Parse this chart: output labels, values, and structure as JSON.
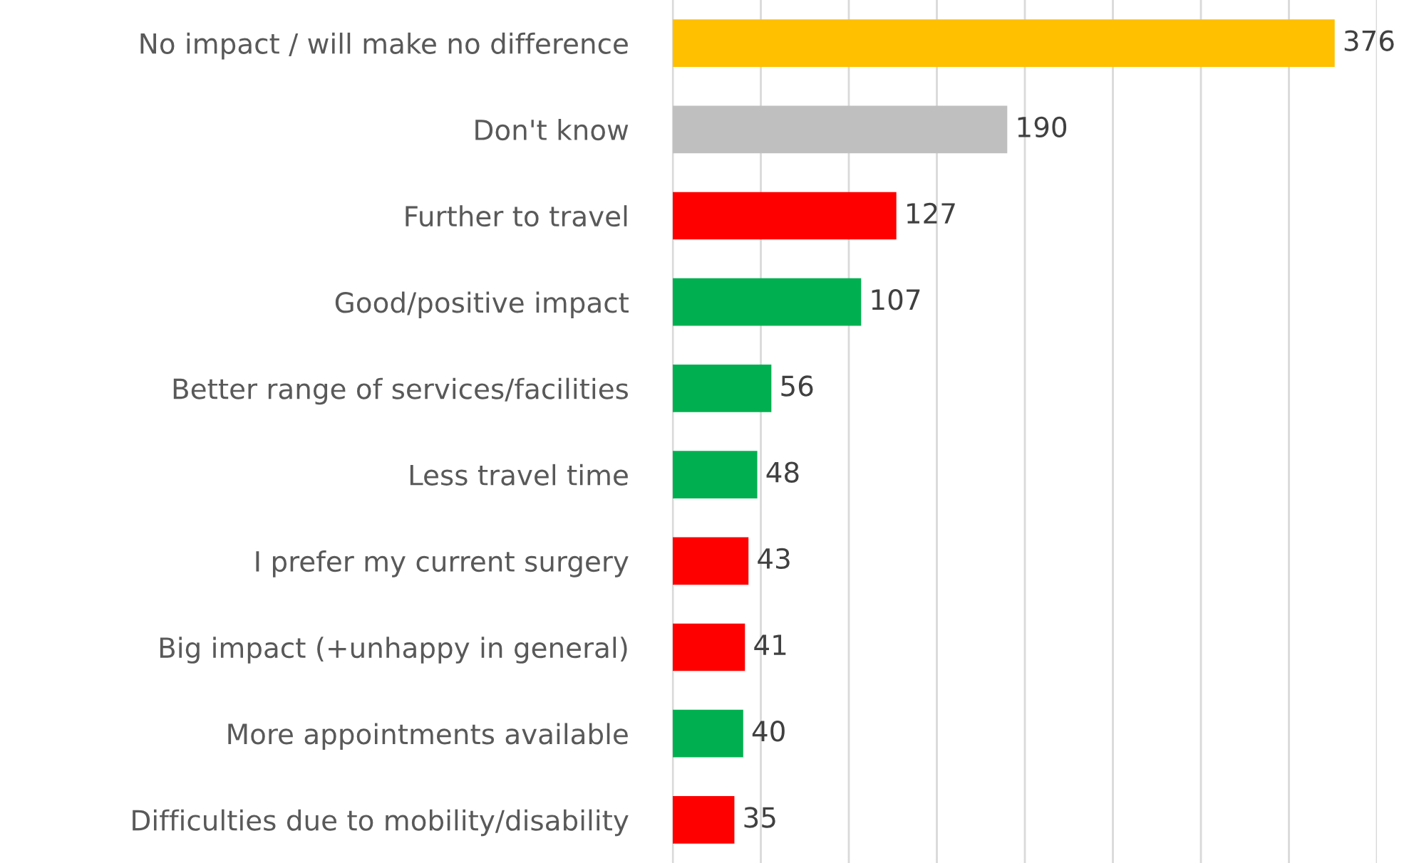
{
  "chart_data": {
    "type": "bar",
    "orientation": "horizontal",
    "categories": [
      "No impact / will make no difference",
      "Don't know",
      "Further to travel",
      "Good/positive impact",
      "Better range of services/facilities",
      "Less travel time",
      "I prefer my current surgery",
      "Big impact (+unhappy in general)",
      "More appointments available",
      "Difficulties due to mobility/disability"
    ],
    "values": [
      376,
      190,
      127,
      107,
      56,
      48,
      43,
      41,
      40,
      35
    ],
    "colors": [
      "#ffc000",
      "#bfbfbf",
      "#ff0000",
      "#00b050",
      "#00b050",
      "#00b050",
      "#ff0000",
      "#ff0000",
      "#00b050",
      "#ff0000"
    ],
    "xlim": [
      0,
      400
    ],
    "xticks": [
      {
        "value": 0,
        "label": null
      },
      {
        "value": 50,
        "label": null
      },
      {
        "value": 100,
        "label": null
      },
      {
        "value": 150,
        "label": null
      },
      {
        "value": 200,
        "label": null
      },
      {
        "value": 250,
        "label": null
      },
      {
        "value": 300,
        "label": null
      },
      {
        "value": 350,
        "label": null
      },
      {
        "value": 400,
        "label": null
      }
    ],
    "grid": "x",
    "tick_labels": "y",
    "data_labels": true
  }
}
